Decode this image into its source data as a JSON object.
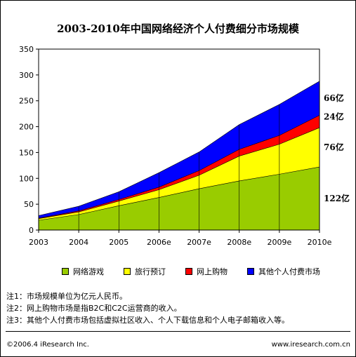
{
  "chart_data": {
    "type": "area",
    "title": "2003-2010年中国网络经济个人付费细分市场规模",
    "categories": [
      "2003",
      "2004",
      "2005",
      "2006e",
      "2007e",
      "2008e",
      "2009e",
      "2010e"
    ],
    "ylim": [
      0,
      350
    ],
    "yticks": [
      0,
      50,
      100,
      150,
      200,
      250,
      300,
      350
    ],
    "stacked": true,
    "grid": false,
    "legend_placement": "bottom",
    "series": [
      {
        "name": "网络游戏",
        "color": "#99cc00",
        "values": [
          19,
          30,
          47,
          63,
          80,
          95,
          108,
          122
        ]
      },
      {
        "name": "旅行预订",
        "color": "#ffff00",
        "values": [
          3,
          5,
          9,
          15,
          26,
          48,
          58,
          76
        ]
      },
      {
        "name": "网上购物",
        "color": "#ff0000",
        "values": [
          1,
          2,
          3,
          5,
          9,
          13,
          17,
          24
        ]
      },
      {
        "name": "其他个人付费市场",
        "color": "#0000ff",
        "values": [
          5,
          9,
          15,
          28,
          36,
          48,
          60,
          66
        ]
      }
    ],
    "end_labels": [
      "122亿",
      "76亿",
      "24亿",
      "66亿"
    ]
  },
  "notes": [
    "注1：市场规模单位为亿元人民币。",
    "注2：网上购物市场是指B2C和C2C运营商的收入。",
    "注3：其他个人付费市场包括虚拟社区收入、个人下载信息和个人电子邮箱收入等。"
  ],
  "footer": {
    "left": "©2006.4 iResearch Inc.",
    "right": "www.iresearch.com.cn"
  }
}
